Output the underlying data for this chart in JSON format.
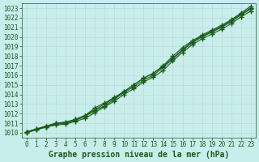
{
  "xlabel": "Graphe pression niveau de la mer (hPa)",
  "ylim": [
    1009.5,
    1023.5
  ],
  "xlim": [
    -0.5,
    23.5
  ],
  "yticks": [
    1010,
    1011,
    1012,
    1013,
    1014,
    1015,
    1016,
    1017,
    1018,
    1019,
    1020,
    1021,
    1022,
    1023
  ],
  "xticks": [
    0,
    1,
    2,
    3,
    4,
    5,
    6,
    7,
    8,
    9,
    10,
    11,
    12,
    13,
    14,
    15,
    16,
    17,
    18,
    19,
    20,
    21,
    22,
    23
  ],
  "bg_color": "#c8eeec",
  "grid_color": "#c0d8d4",
  "line_color": "#1a5c1a",
  "tick_color": "#1a5c1a",
  "line1": [
    1010.1,
    1010.4,
    1010.7,
    1011.0,
    1011.1,
    1011.4,
    1011.8,
    1012.4,
    1013.0,
    1013.6,
    1014.3,
    1015.0,
    1015.7,
    1016.2,
    1017.0,
    1018.0,
    1018.9,
    1019.6,
    1020.2,
    1020.7,
    1021.2,
    1021.8,
    1022.5,
    1023.2
  ],
  "line2": [
    1010.1,
    1010.4,
    1010.7,
    1011.0,
    1011.1,
    1011.4,
    1011.8,
    1012.6,
    1013.1,
    1013.7,
    1014.3,
    1015.0,
    1015.7,
    1016.2,
    1016.9,
    1017.8,
    1018.7,
    1019.5,
    1020.1,
    1020.6,
    1021.1,
    1021.7,
    1022.4,
    1023.0
  ],
  "line3": [
    1010.1,
    1010.35,
    1010.6,
    1010.9,
    1011.0,
    1011.3,
    1011.7,
    1012.3,
    1012.8,
    1013.5,
    1014.2,
    1014.8,
    1015.5,
    1016.0,
    1016.8,
    1017.7,
    1018.6,
    1019.4,
    1020.0,
    1020.5,
    1021.0,
    1021.6,
    1022.3,
    1022.9
  ],
  "line4": [
    1010.0,
    1010.3,
    1010.6,
    1010.8,
    1010.9,
    1011.2,
    1011.5,
    1012.1,
    1012.7,
    1013.3,
    1014.0,
    1014.6,
    1015.3,
    1015.8,
    1016.5,
    1017.5,
    1018.4,
    1019.2,
    1019.8,
    1020.3,
    1020.8,
    1021.4,
    1022.1,
    1022.7
  ],
  "marker": "+",
  "markersize": 4,
  "markeredgewidth": 1.0,
  "linewidth": 0.8,
  "tick_fontsize": 5.5,
  "label_fontsize": 7,
  "label_fontweight": "bold",
  "font_family": "monospace"
}
